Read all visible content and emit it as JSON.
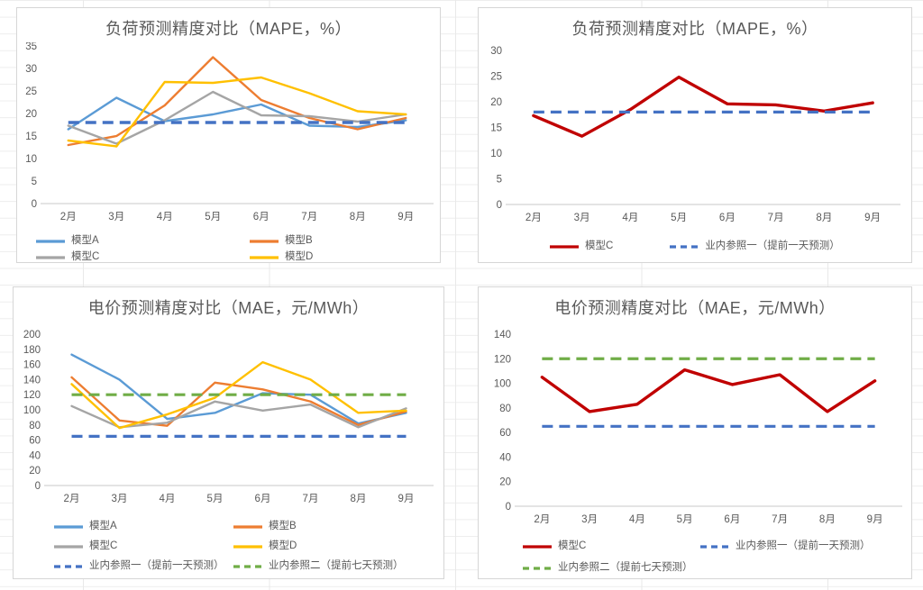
{
  "app": {
    "background": "excel-worksheet-grid",
    "grid_line_color": "#ededed"
  },
  "colors": {
    "model_a_blue": "#5B9BD5",
    "model_b_orange": "#ED7D31",
    "model_c_gray": "#A5A5A5",
    "model_d_yellow": "#FFC000",
    "model_c_red": "#C00000",
    "ref_one_blue_dashed": "#4472C4",
    "ref_two_green_dashed": "#70AD47",
    "axis_text": "#595959",
    "chart_border": "#D6D6D6",
    "axis_line": "#C9C9C9"
  },
  "chart_data": [
    {
      "type": "line",
      "title": "负荷预测精度对比（MAPE，%）",
      "categories": [
        "2月",
        "3月",
        "4月",
        "5月",
        "6月",
        "7月",
        "8月",
        "9月"
      ],
      "ylim": [
        0,
        35
      ],
      "ytick_step": 5,
      "grid": false,
      "legend_position": "bottom",
      "legend_columns": 2,
      "series": [
        {
          "name": "模型A",
          "color": "#5B9BD5",
          "style": "solid",
          "width": 2.4,
          "in_legend": true,
          "values": [
            16.5,
            23.5,
            18.3,
            19.8,
            22.0,
            17.3,
            17.0,
            18.5
          ]
        },
        {
          "name": "模型B",
          "color": "#ED7D31",
          "style": "solid",
          "width": 2.4,
          "in_legend": true,
          "values": [
            13.0,
            15.0,
            21.8,
            32.5,
            23.0,
            19.0,
            16.5,
            19.0
          ]
        },
        {
          "name": "模型C",
          "color": "#A5A5A5",
          "style": "solid",
          "width": 2.4,
          "in_legend": true,
          "values": [
            17.3,
            13.3,
            18.5,
            24.8,
            19.6,
            19.4,
            18.2,
            19.8
          ]
        },
        {
          "name": "模型D",
          "color": "#FFC000",
          "style": "solid",
          "width": 2.4,
          "in_legend": true,
          "values": [
            14.0,
            12.7,
            27.0,
            26.8,
            28.0,
            24.5,
            20.5,
            19.8
          ]
        },
        {
          "name": "业内参照一（提前一天预测）",
          "color": "#4472C4",
          "style": "dashed",
          "width": 3.5,
          "in_legend": false,
          "values": 18
        }
      ]
    },
    {
      "type": "line",
      "title": "负荷预测精度对比（MAPE，%）",
      "categories": [
        "2月",
        "3月",
        "4月",
        "5月",
        "6月",
        "7月",
        "8月",
        "9月"
      ],
      "ylim": [
        0,
        30
      ],
      "ytick_step": 5,
      "grid": false,
      "legend_position": "bottom",
      "legend_columns": 2,
      "series": [
        {
          "name": "模型C",
          "color": "#C00000",
          "style": "solid",
          "width": 3.4,
          "in_legend": true,
          "values": [
            17.3,
            13.3,
            18.5,
            24.8,
            19.6,
            19.4,
            18.2,
            19.8
          ]
        },
        {
          "name": "业内参照一（提前一天预测）",
          "color": "#4472C4",
          "style": "dashed",
          "width": 3.2,
          "in_legend": true,
          "values": 18
        }
      ]
    },
    {
      "type": "line",
      "title": "电价预测精度对比（MAE，元/MWh）",
      "categories": [
        "2月",
        "3月",
        "4月",
        "5月",
        "6月",
        "7月",
        "8月",
        "9月"
      ],
      "ylim": [
        0,
        200
      ],
      "ytick_step": 20,
      "grid": false,
      "legend_position": "bottom",
      "legend_columns": 2,
      "series": [
        {
          "name": "模型A",
          "color": "#5B9BD5",
          "style": "solid",
          "width": 2.4,
          "in_legend": true,
          "values": [
            173,
            140,
            88,
            96,
            122,
            120,
            82,
            96
          ]
        },
        {
          "name": "模型B",
          "color": "#ED7D31",
          "style": "solid",
          "width": 2.4,
          "in_legend": true,
          "values": [
            143,
            86,
            79,
            136,
            127,
            111,
            80,
            98
          ]
        },
        {
          "name": "模型C",
          "color": "#A5A5A5",
          "style": "solid",
          "width": 2.4,
          "in_legend": true,
          "values": [
            105,
            77,
            83,
            111,
            99,
            107,
            77,
            102
          ]
        },
        {
          "name": "模型D",
          "color": "#FFC000",
          "style": "solid",
          "width": 2.4,
          "in_legend": true,
          "values": [
            134,
            76,
            94,
            116,
            163,
            140,
            96,
            99
          ]
        },
        {
          "name": "业内参照一（提前一天预测）",
          "color": "#4472C4",
          "style": "dashed",
          "width": 3.2,
          "in_legend": true,
          "values": 65
        },
        {
          "name": "业内参照二（提前七天预测）",
          "color": "#70AD47",
          "style": "dashed",
          "width": 3.2,
          "in_legend": true,
          "values": 120
        }
      ]
    },
    {
      "type": "line",
      "title": "电价预测精度对比（MAE，元/MWh）",
      "categories": [
        "2月",
        "3月",
        "4月",
        "5月",
        "6月",
        "7月",
        "8月",
        "9月"
      ],
      "ylim": [
        0,
        140
      ],
      "ytick_step": 20,
      "grid": false,
      "legend_position": "bottom",
      "legend_columns": 2,
      "series": [
        {
          "name": "模型C",
          "color": "#C00000",
          "style": "solid",
          "width": 3.4,
          "in_legend": true,
          "values": [
            105,
            77,
            83,
            111,
            99,
            107,
            77,
            102
          ]
        },
        {
          "name": "业内参照一（提前一天预测）",
          "color": "#4472C4",
          "style": "dashed",
          "width": 3.2,
          "in_legend": true,
          "values": 65
        },
        {
          "name": "业内参照二（提前七天预测）",
          "color": "#70AD47",
          "style": "dashed",
          "width": 3.2,
          "in_legend": true,
          "values": 120
        }
      ]
    }
  ]
}
